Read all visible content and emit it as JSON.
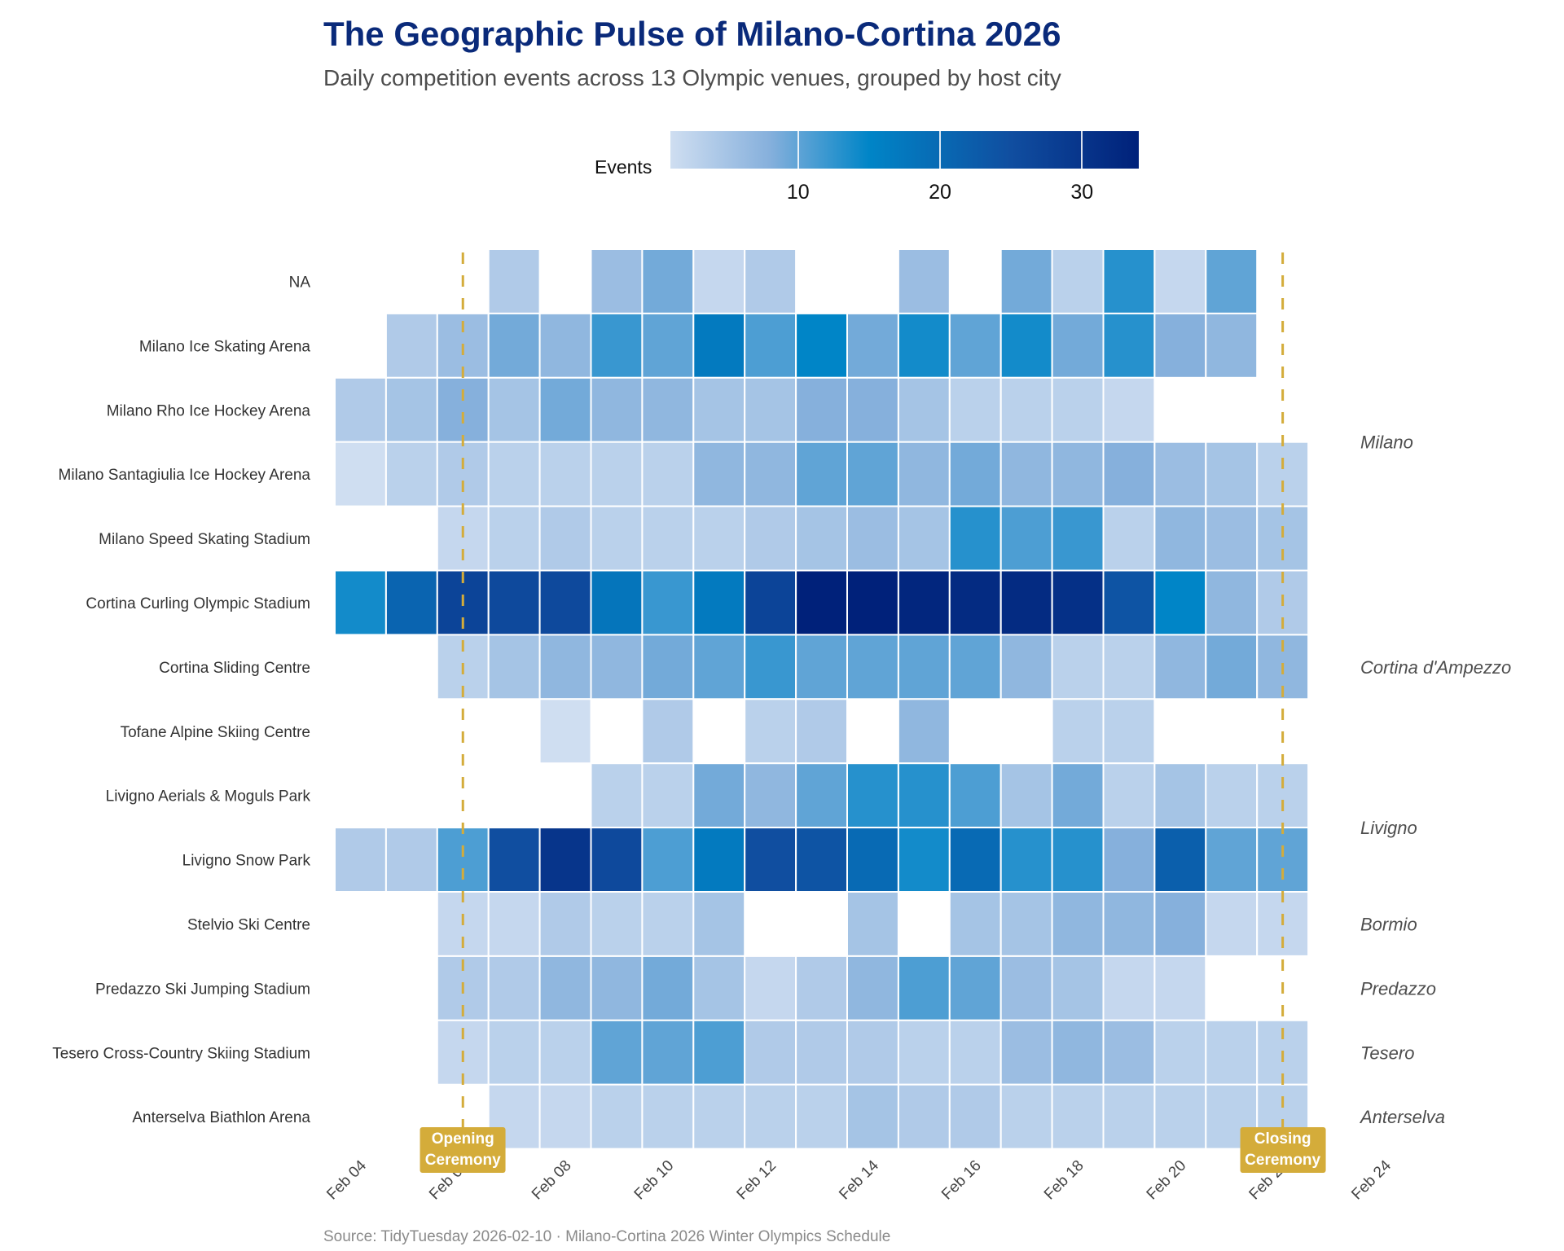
{
  "chart_data": {
    "type": "heatmap",
    "title": "The Geographic Pulse of Milano-Cortina 2026",
    "subtitle": "Daily competition events across 13 Olympic venues, grouped by host city",
    "caption": "Source: TidyTuesday 2026-02-10 · Milano-Cortina 2026 Winter Olympics Schedule",
    "legend": {
      "title": "Events",
      "ticks": [
        10,
        20,
        30
      ],
      "range": [
        1,
        34
      ],
      "placement": "top",
      "stops": [
        {
          "value": 1,
          "color": "#cfdef1"
        },
        {
          "value": 8,
          "color": "#86b0dc"
        },
        {
          "value": 15,
          "color": "#0085c7"
        },
        {
          "value": 25,
          "color": "#104ea0"
        },
        {
          "value": 34,
          "color": "#00217a"
        }
      ]
    },
    "x": [
      "Feb 04",
      "Feb 05",
      "Feb 06",
      "Feb 07",
      "Feb 08",
      "Feb 09",
      "Feb 10",
      "Feb 11",
      "Feb 12",
      "Feb 13",
      "Feb 14",
      "Feb 15",
      "Feb 16",
      "Feb 17",
      "Feb 18",
      "Feb 19",
      "Feb 20",
      "Feb 21",
      "Feb 22"
    ],
    "x_tick_labels": [
      "Feb 04",
      "Feb 06",
      "Feb 08",
      "Feb 10",
      "Feb 12",
      "Feb 14",
      "Feb 16",
      "Feb 18",
      "Feb 20",
      "Feb 22",
      "Feb 24"
    ],
    "xlabel": "",
    "ylabel": "",
    "rows": [
      {
        "venue": "NA",
        "values": [
          null,
          null,
          null,
          4,
          null,
          6,
          9,
          2,
          4,
          null,
          null,
          6,
          null,
          9,
          3,
          13,
          2,
          10,
          null
        ]
      },
      {
        "venue": "Milano Ice Skating Arena",
        "values": [
          null,
          4,
          6,
          9,
          7,
          12,
          10,
          17,
          11,
          15,
          9,
          14,
          10,
          14,
          9,
          13,
          8,
          7,
          null
        ]
      },
      {
        "venue": "Milano Rho Ice Hockey Arena",
        "values": [
          4,
          5,
          8,
          5,
          9,
          7,
          7,
          5,
          5,
          8,
          8,
          5,
          3,
          3,
          3,
          2,
          null,
          null,
          null
        ]
      },
      {
        "venue": "Milano Santagiulia Ice Hockey Arena",
        "values": [
          1,
          3,
          4,
          3,
          3,
          3,
          3,
          7,
          7,
          10,
          10,
          7,
          9,
          7,
          7,
          8,
          6,
          5,
          3
        ]
      },
      {
        "venue": "Milano Speed Skating Stadium",
        "values": [
          null,
          null,
          2,
          3,
          4,
          3,
          3,
          3,
          4,
          5,
          6,
          5,
          13,
          11,
          12,
          3,
          7,
          6,
          5
        ]
      },
      {
        "venue": "Cortina Curling Olympic Stadium",
        "values": [
          14,
          21,
          27,
          26,
          26,
          18,
          12,
          17,
          27,
          34,
          34,
          33,
          32,
          32,
          31,
          24,
          15,
          7,
          4
        ]
      },
      {
        "venue": "Cortina Sliding Centre",
        "values": [
          null,
          null,
          3,
          5,
          7,
          7,
          9,
          10,
          12,
          10,
          10,
          10,
          10,
          7,
          3,
          3,
          7,
          9,
          7
        ]
      },
      {
        "venue": "Tofane Alpine Skiing Centre",
        "values": [
          null,
          null,
          null,
          null,
          1,
          null,
          4,
          null,
          3,
          4,
          null,
          7,
          null,
          null,
          3,
          3,
          null,
          null,
          null
        ]
      },
      {
        "venue": "Livigno Aerials & Moguls Park",
        "values": [
          null,
          null,
          null,
          null,
          null,
          3,
          3,
          9,
          7,
          10,
          13,
          13,
          11,
          5,
          9,
          3,
          5,
          3,
          3
        ]
      },
      {
        "venue": "Livigno Snow Park",
        "values": [
          4,
          4,
          11,
          25,
          30,
          26,
          11,
          17,
          25,
          24,
          20,
          14,
          20,
          13,
          13,
          8,
          22,
          10,
          10
        ]
      },
      {
        "venue": "Stelvio Ski Centre",
        "values": [
          null,
          null,
          2,
          2,
          4,
          3,
          3,
          5,
          null,
          null,
          5,
          null,
          5,
          5,
          7,
          7,
          8,
          2,
          2
        ]
      },
      {
        "venue": "Predazzo Ski Jumping Stadium",
        "values": [
          null,
          null,
          4,
          4,
          7,
          7,
          9,
          5,
          2,
          4,
          7,
          11,
          10,
          6,
          5,
          2,
          2,
          null,
          null
        ]
      },
      {
        "venue": "Tesero Cross-Country Skiing Stadium",
        "values": [
          null,
          null,
          2,
          3,
          3,
          10,
          10,
          11,
          4,
          4,
          4,
          3,
          3,
          6,
          7,
          6,
          3,
          3,
          3
        ]
      },
      {
        "venue": "Anterselva Biathlon Arena",
        "values": [
          null,
          null,
          null,
          2,
          2,
          3,
          3,
          3,
          3,
          3,
          5,
          4,
          4,
          3,
          3,
          3,
          3,
          3,
          3
        ]
      }
    ],
    "city_groups": [
      {
        "city": "Milano",
        "rows": [
          1,
          4
        ]
      },
      {
        "city": "Cortina d'Ampezzo",
        "rows": [
          5,
          7
        ]
      },
      {
        "city": "Livigno",
        "rows": [
          8,
          9
        ]
      },
      {
        "city": "Bormio",
        "rows": [
          10,
          10
        ]
      },
      {
        "city": "Predazzo",
        "rows": [
          11,
          11
        ]
      },
      {
        "city": "Tesero",
        "rows": [
          12,
          12
        ]
      },
      {
        "city": "Anterselva",
        "rows": [
          13,
          13
        ]
      }
    ],
    "annotations": [
      {
        "label": "Opening\nCeremony",
        "date": "Feb 06",
        "color": "#d4ac3a"
      },
      {
        "label": "Closing\nCeremony",
        "date": "Feb 22",
        "color": "#d4ac3a"
      }
    ]
  }
}
